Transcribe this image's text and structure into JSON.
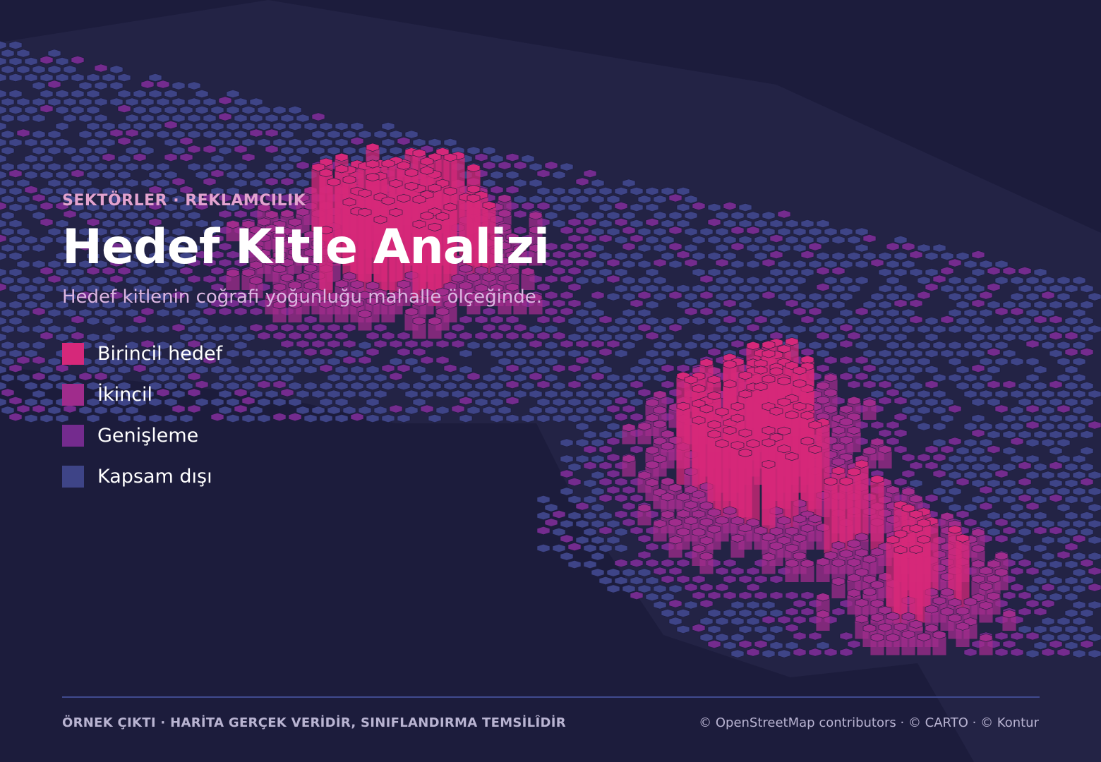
{
  "header": {
    "eyebrow": "SEKTÖRLER · REKLAMCILIK",
    "title": "Hedef Kitle Analizi",
    "subtitle": "Hedef kitlenin coğrafi yoğunluğu mahalle ölçeğinde."
  },
  "legend": [
    {
      "label": "Birincil hedef",
      "color": "#d6287a"
    },
    {
      "label": "İkincil",
      "color": "#a02c8c"
    },
    {
      "label": "Genişleme",
      "color": "#742b8e"
    },
    {
      "label": "Kapsam dışı",
      "color": "#3e4487"
    }
  ],
  "footer": {
    "note": "ÖRNEK ÇIKTI · HARİTA GERÇEK VERİDİR, SINIFLANDIRMA TEMSİLÎDİR",
    "attribution": "© OpenStreetMap contributors · © CARTO · © Kontur"
  },
  "map": {
    "background_color": "#1c1c3c",
    "land_color": "#232345",
    "visualization": "3d-hexbin-extrusion"
  }
}
